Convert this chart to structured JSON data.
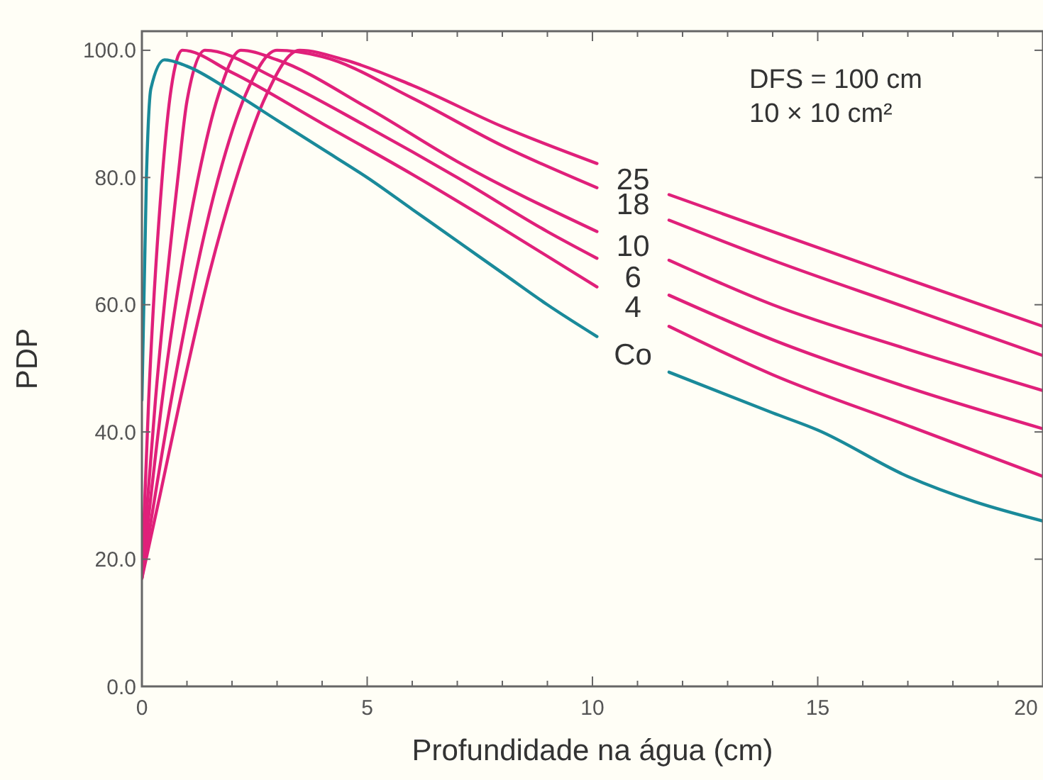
{
  "chart_data": {
    "type": "line",
    "xlabel": "Profundidade na água (cm)",
    "ylabel": "PDP",
    "xlim": [
      0,
      20
    ],
    "ylim": [
      0,
      103
    ],
    "xticks": [
      0,
      {
        "value": 1,
        "label": null
      },
      {
        "value": 2,
        "label": null
      },
      {
        "value": 3,
        "label": null
      },
      {
        "value": 4,
        "label": null
      },
      5,
      {
        "value": 6,
        "label": null
      },
      {
        "value": 7,
        "label": null
      },
      {
        "value": 8,
        "label": null
      },
      {
        "value": 9,
        "label": null
      },
      10,
      {
        "value": 11,
        "label": null
      },
      {
        "value": 12,
        "label": null
      },
      {
        "value": 13,
        "label": null
      },
      {
        "value": 14,
        "label": null
      },
      15,
      {
        "value": 16,
        "label": null
      },
      {
        "value": 17,
        "label": null
      },
      {
        "value": 18,
        "label": null
      },
      {
        "value": 19,
        "label": null
      },
      20
    ],
    "yticks": [
      {
        "value": 0,
        "label": "0.0"
      },
      {
        "value": 20,
        "label": "20.0"
      },
      {
        "value": 40,
        "label": "40.0"
      },
      {
        "value": 60,
        "label": "60.0"
      },
      {
        "value": 80,
        "label": "80.0"
      },
      {
        "value": 100,
        "label": "100.0"
      }
    ],
    "grid": false,
    "marker": "none",
    "line_style": "solid",
    "annotations": [
      "DFS = 100 cm",
      "10 × 10 cm²"
    ],
    "series": [
      {
        "name": "25",
        "color": "#e0207a",
        "x": [
          0,
          0.4,
          0.85,
          1.5,
          2.1,
          2.7,
          3.5,
          4.5,
          6,
          8,
          10.1,
          10.9,
          11.7,
          14,
          17,
          20
        ],
        "values": [
          17,
          30,
          45,
          65,
          80,
          92,
          100,
          98.5,
          94.5,
          88,
          82.2,
          null,
          77.3,
          71.5,
          64,
          56.6
        ]
      },
      {
        "name": "18",
        "color": "#e0207a",
        "x": [
          0,
          0.65,
          1.7,
          2.3,
          3,
          4,
          6,
          8,
          10.1,
          10.9,
          11.7,
          14,
          17,
          20
        ],
        "values": [
          17,
          45,
          80,
          93,
          100,
          99,
          92.5,
          85,
          78.4,
          null,
          73.3,
          67,
          59.5,
          52
        ]
      },
      {
        "name": "10",
        "color": "#e0207a",
        "x": [
          0,
          0.45,
          1.25,
          1.7,
          2.2,
          3,
          5,
          7,
          10.1,
          10.9,
          11.7,
          14,
          17,
          20
        ],
        "values": [
          17,
          45,
          80,
          93,
          100,
          98.5,
          91,
          82.5,
          71.5,
          null,
          67,
          60,
          53,
          46.5
        ]
      },
      {
        "name": "6",
        "color": "#e0207a",
        "x": [
          0,
          0.3,
          0.8,
          1,
          1.4,
          3,
          5,
          7,
          9,
          10.1,
          10.9,
          11.7,
          14,
          17,
          20
        ],
        "values": [
          18,
          45,
          80,
          92,
          100,
          95.5,
          88,
          80,
          71.5,
          67.3,
          null,
          61.5,
          54.5,
          47,
          40.5
        ]
      },
      {
        "name": "4",
        "color": "#e0207a",
        "x": [
          0,
          0.15,
          0.45,
          0.65,
          0.9,
          2,
          4,
          6,
          8,
          10.1,
          10.9,
          11.7,
          14,
          17,
          20
        ],
        "values": [
          18,
          45,
          80,
          94,
          100,
          96.5,
          88.5,
          80.5,
          72,
          62.8,
          null,
          56.6,
          49,
          41,
          33
        ]
      },
      {
        "name": "Co",
        "color": "#1a8a9a",
        "x": [
          0,
          0.1,
          0.2,
          0.5,
          1,
          2,
          3,
          4,
          5,
          6,
          7,
          8,
          9,
          10.1,
          10.9,
          11.7,
          14,
          15,
          17,
          18.5,
          20
        ],
        "values": [
          45,
          80,
          94,
          98.5,
          97.5,
          93.5,
          89,
          84.5,
          80,
          75,
          70,
          65,
          60,
          55,
          null,
          49.4,
          43,
          40.3,
          33,
          29,
          26
        ]
      }
    ]
  }
}
